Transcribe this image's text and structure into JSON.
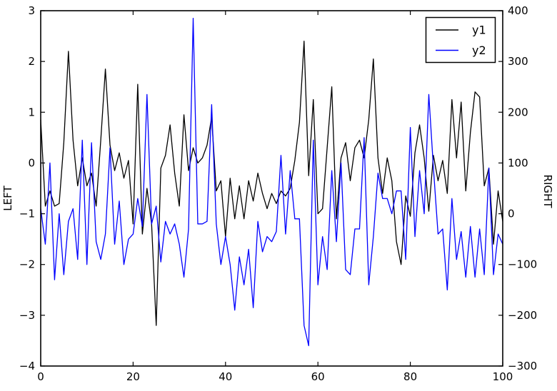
{
  "figure": {
    "background": "#ffffff",
    "frame_color": "#000000"
  },
  "chart_data": {
    "type": "line",
    "title": "",
    "x_range": {
      "start": 0,
      "end": 100,
      "step": 1
    },
    "x_ticks": [
      0,
      20,
      40,
      60,
      80,
      100
    ],
    "left_axis": {
      "label": "LEFT",
      "min": -4,
      "max": 3,
      "ticks": [
        3,
        2,
        1,
        0,
        -1,
        -2,
        -3,
        -4
      ]
    },
    "right_axis": {
      "label": "RIGHT",
      "min": -300,
      "max": 400,
      "ticks": [
        400,
        300,
        200,
        100,
        0,
        -100,
        -200,
        -300
      ]
    },
    "grid": false,
    "legend": {
      "position": "upper right",
      "entries": [
        {
          "label": "y1",
          "color": "#000000"
        },
        {
          "label": "y2",
          "color": "#0000ff"
        }
      ]
    },
    "series": [
      {
        "name": "y1",
        "axis": "left",
        "color": "#000000",
        "values": [
          0.85,
          -0.85,
          -0.55,
          -0.85,
          -0.8,
          0.4,
          2.2,
          0.45,
          -0.45,
          0.1,
          -0.45,
          -0.2,
          -0.85,
          0.45,
          1.85,
          0.35,
          -0.15,
          0.2,
          -0.3,
          0.05,
          -1.2,
          1.55,
          -1.4,
          -0.5,
          -1.2,
          -3.2,
          -0.1,
          0.15,
          0.75,
          -0.2,
          -0.85,
          0.95,
          -0.15,
          0.3,
          0.0,
          0.1,
          0.35,
          0.9,
          -0.55,
          -0.35,
          -1.45,
          -0.3,
          -1.1,
          -0.45,
          -1.1,
          -0.35,
          -0.75,
          -0.2,
          -0.6,
          -0.9,
          -0.6,
          -0.8,
          -0.55,
          -0.65,
          -0.5,
          0.05,
          0.8,
          2.4,
          -0.25,
          1.25,
          -1.0,
          -0.9,
          0.3,
          1.5,
          -1.1,
          0.1,
          0.4,
          -0.35,
          0.3,
          0.45,
          0.1,
          0.85,
          2.05,
          0.1,
          -0.6,
          0.1,
          -0.35,
          -1.55,
          -2.0,
          -0.65,
          -1.05,
          0.2,
          0.75,
          0.1,
          -0.95,
          0.15,
          -0.35,
          0.05,
          -0.6,
          1.25,
          0.1,
          1.2,
          -0.55,
          0.6,
          1.4,
          1.3,
          -0.45,
          -0.1,
          -1.6,
          -0.55,
          -1.15
        ]
      },
      {
        "name": "y2",
        "axis": "right",
        "color": "#0000ff",
        "values": [
          10,
          -60,
          100,
          -130,
          0,
          -120,
          -15,
          10,
          -90,
          145,
          -100,
          140,
          -55,
          -90,
          -40,
          130,
          -60,
          25,
          -100,
          -50,
          -40,
          30,
          -25,
          235,
          -20,
          15,
          -95,
          -15,
          -40,
          -20,
          -60,
          -125,
          -30,
          385,
          -20,
          -20,
          -15,
          215,
          -20,
          -100,
          -45,
          -100,
          -190,
          -85,
          -140,
          -70,
          -185,
          -15,
          -75,
          -45,
          -55,
          -35,
          115,
          -40,
          85,
          -10,
          -10,
          -220,
          -260,
          145,
          -140,
          -45,
          -110,
          85,
          -55,
          100,
          -110,
          -120,
          -30,
          -30,
          150,
          -140,
          -45,
          80,
          30,
          30,
          0,
          45,
          45,
          -90,
          170,
          -45,
          85,
          0,
          235,
          90,
          -40,
          -30,
          -150,
          30,
          -90,
          -35,
          -125,
          -25,
          -125,
          -30,
          -120,
          90,
          -120,
          -40,
          -60
        ]
      }
    ]
  }
}
